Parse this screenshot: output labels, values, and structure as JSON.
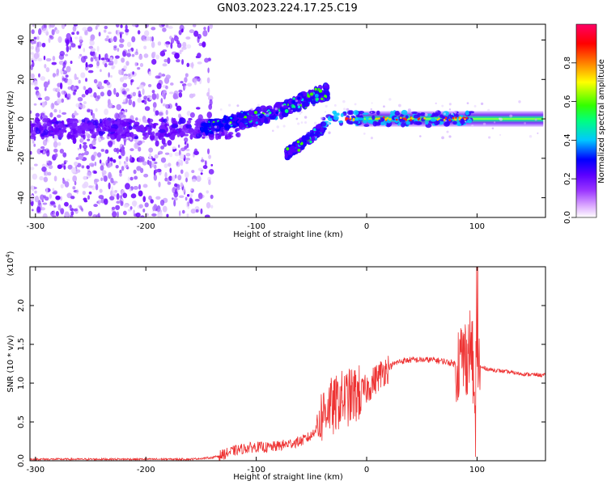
{
  "title": "GN03.2023.224.17.25.C19",
  "chart_data": [
    {
      "type": "heatmap",
      "xlabel": "Height of straight line (km)",
      "ylabel": "Frequency (Hz)",
      "xlim": [
        -305,
        162
      ],
      "ylim": [
        -50,
        48
      ],
      "xticks": [
        -300,
        -200,
        -100,
        0,
        100
      ],
      "xtick_labels": [
        "-300",
        "-200",
        "-100",
        "0",
        "100"
      ],
      "yticks": [
        -40,
        -20,
        0,
        20,
        40
      ],
      "ytick_labels": [
        "-40",
        "-20",
        "0",
        "20",
        "40"
      ],
      "grid": false,
      "colorbar": {
        "label": "Normalized spectral amplitude",
        "range": [
          0,
          1
        ],
        "ticks": [
          0.0,
          0.2,
          0.4,
          0.6,
          0.8
        ],
        "tick_labels": [
          "0.0",
          "0.2",
          "0.4",
          "0.6",
          "0.8"
        ],
        "colors": [
          "#ffffff",
          "#dcaaff",
          "#9a35ff",
          "#5a00ff",
          "#0000ff",
          "#00c8ff",
          "#00ff80",
          "#33ff00",
          "#ffff00",
          "#ff8000",
          "#ff0000",
          "#ff0066"
        ]
      },
      "features": {
        "noise_region_x": [
          -305,
          -150
        ],
        "main_band_y": -5,
        "upper_arc": {
          "x": [
            -115,
            -80,
            -60,
            -35
          ],
          "y": [
            -1,
            4,
            9,
            14
          ]
        },
        "lower_arc": {
          "x": [
            -73,
            -55,
            -38
          ],
          "y": [
            -18,
            -11,
            -4
          ]
        },
        "strong_line": {
          "x": [
            -40,
            160
          ],
          "y": [
            0,
            0
          ]
        }
      }
    },
    {
      "type": "line",
      "xlabel": "Height of straight line (km)",
      "ylabel": "SNR (10 * v/v)",
      "yscale_label": "(x10",
      "yscale_exp": "4",
      "yscale_tail": ")",
      "xlim": [
        -305,
        162
      ],
      "ylim": [
        0,
        2.5
      ],
      "xticks": [
        -300,
        -200,
        -100,
        0,
        100
      ],
      "xtick_labels": [
        "-300",
        "-200",
        "-100",
        "0",
        "100"
      ],
      "yticks": [
        0.0,
        0.5,
        1.0,
        1.5,
        2.0
      ],
      "ytick_labels": [
        "0.0",
        "0.5",
        "1.0",
        "1.5",
        "2.0"
      ],
      "grid": false,
      "series": [
        {
          "color": "#ee3333",
          "x": [
            -305,
            -280,
            -250,
            -200,
            -160,
            -140,
            -130,
            -120,
            -110,
            -100,
            -90,
            -80,
            -70,
            -60,
            -50,
            -45,
            -40,
            -35,
            -30,
            -25,
            -20,
            -15,
            -10,
            -5,
            0,
            5,
            10,
            15,
            20,
            25,
            30,
            40,
            50,
            60,
            70,
            80,
            85,
            90,
            95,
            97,
            100,
            102,
            105,
            110,
            120,
            130,
            140,
            150,
            162
          ],
          "values": [
            0.02,
            0.02,
            0.02,
            0.02,
            0.02,
            0.04,
            0.08,
            0.13,
            0.16,
            0.18,
            0.17,
            0.19,
            0.22,
            0.25,
            0.32,
            0.45,
            0.6,
            0.72,
            0.68,
            0.78,
            0.8,
            0.82,
            0.85,
            0.88,
            0.92,
            1.0,
            1.08,
            1.15,
            1.2,
            1.25,
            1.28,
            1.3,
            1.3,
            1.3,
            1.28,
            1.25,
            1.3,
            1.35,
            1.5,
            1.0,
            1.25,
            1.2,
            1.2,
            1.18,
            1.16,
            1.14,
            1.12,
            1.11,
            1.1
          ]
        }
      ]
    }
  ]
}
